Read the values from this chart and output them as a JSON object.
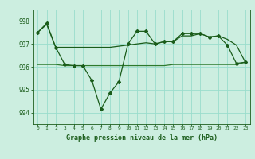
{
  "title": "Graphe pression niveau de la mer (hPa)",
  "background_color": "#cceee0",
  "grid_color": "#99ddcc",
  "line_color_dark": "#1a5c1a",
  "line_color_medium": "#2d7a2d",
  "ylim": [
    993.5,
    998.5
  ],
  "yticks": [
    994,
    995,
    996,
    997,
    998
  ],
  "xlim": [
    -0.5,
    23.5
  ],
  "xticks": [
    0,
    1,
    2,
    3,
    4,
    5,
    6,
    7,
    8,
    9,
    10,
    11,
    12,
    13,
    14,
    15,
    16,
    17,
    18,
    19,
    20,
    21,
    22,
    23
  ],
  "series1": [
    997.5,
    997.9,
    996.85,
    996.1,
    996.05,
    996.05,
    995.4,
    994.15,
    994.85,
    995.35,
    997.0,
    997.55,
    997.55,
    997.0,
    997.1,
    997.1,
    997.45,
    997.45,
    997.45,
    997.3,
    997.35,
    996.95,
    996.15,
    996.2
  ],
  "series2": [
    996.1,
    996.1,
    996.1,
    996.05,
    996.05,
    996.05,
    996.05,
    996.05,
    996.05,
    996.05,
    996.05,
    996.05,
    996.05,
    996.05,
    996.05,
    996.1,
    996.1,
    996.1,
    996.1,
    996.1,
    996.1,
    996.1,
    996.1,
    996.2
  ],
  "series3": [
    997.5,
    997.85,
    996.85,
    996.85,
    996.85,
    996.85,
    996.85,
    996.85,
    996.85,
    996.9,
    996.95,
    997.0,
    997.05,
    997.0,
    997.1,
    997.1,
    997.35,
    997.35,
    997.45,
    997.3,
    997.35,
    997.2,
    996.95,
    996.2
  ]
}
